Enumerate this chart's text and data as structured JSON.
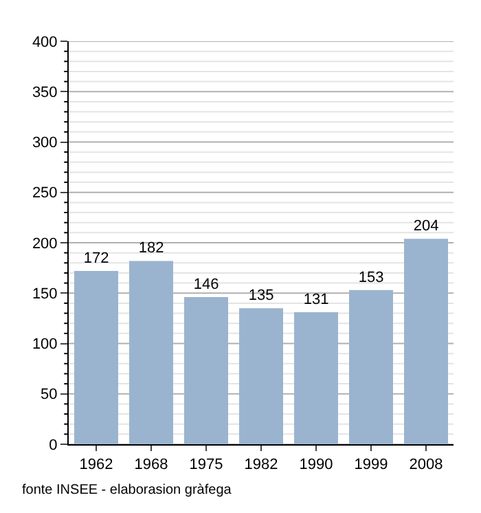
{
  "chart_data": {
    "type": "bar",
    "categories": [
      "1962",
      "1968",
      "1975",
      "1982",
      "1990",
      "1999",
      "2008"
    ],
    "values": [
      172,
      182,
      146,
      135,
      131,
      153,
      204
    ],
    "color": "#9ab4cf",
    "data_labels": true,
    "ylim": [
      0,
      400
    ],
    "yticks": [
      0,
      {
        "value": 10,
        "label": null
      },
      {
        "value": 20,
        "label": null
      },
      {
        "value": 30,
        "label": null
      },
      {
        "value": 40,
        "label": null
      },
      50,
      {
        "value": 60,
        "label": null
      },
      {
        "value": 70,
        "label": null
      },
      {
        "value": 80,
        "label": null
      },
      {
        "value": 90,
        "label": null
      },
      100,
      {
        "value": 110,
        "label": null
      },
      {
        "value": 120,
        "label": null
      },
      {
        "value": 130,
        "label": null
      },
      {
        "value": 140,
        "label": null
      },
      150,
      {
        "value": 160,
        "label": null
      },
      {
        "value": 170,
        "label": null
      },
      {
        "value": 180,
        "label": null
      },
      {
        "value": 190,
        "label": null
      },
      200,
      {
        "value": 210,
        "label": null
      },
      {
        "value": 220,
        "label": null
      },
      {
        "value": 230,
        "label": null
      },
      {
        "value": 240,
        "label": null
      },
      250,
      {
        "value": 260,
        "label": null
      },
      {
        "value": 270,
        "label": null
      },
      {
        "value": 280,
        "label": null
      },
      {
        "value": 290,
        "label": null
      },
      300,
      {
        "value": 310,
        "label": null
      },
      {
        "value": 320,
        "label": null
      },
      {
        "value": 330,
        "label": null
      },
      {
        "value": 340,
        "label": null
      },
      350,
      {
        "value": 360,
        "label": null
      },
      {
        "value": 370,
        "label": null
      },
      {
        "value": 380,
        "label": null
      },
      {
        "value": 390,
        "label": null
      },
      400
    ],
    "grid": "y",
    "legend": false,
    "annotations": [
      "fonte INSEE - elaborasion gràfega"
    ]
  }
}
